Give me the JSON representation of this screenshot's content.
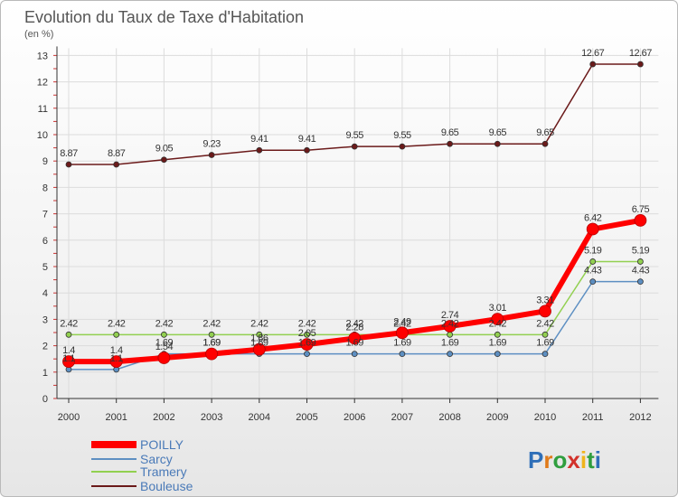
{
  "chart_data": {
    "type": "line",
    "title": "Evolution du Taux de Taxe d'Habitation",
    "subtitle": "(en %)",
    "categories": [
      "2000",
      "2001",
      "2002",
      "2003",
      "2004",
      "2005",
      "2006",
      "2007",
      "2008",
      "2009",
      "2010",
      "2011",
      "2012"
    ],
    "ylim": [
      0,
      13
    ],
    "yticks": [
      "0",
      "1",
      "2",
      "3",
      "4",
      "5",
      "6",
      "7",
      "8",
      "9",
      "10",
      "11",
      "12",
      "13"
    ],
    "grid": true,
    "legend_position": "bottom-left",
    "series": [
      {
        "name": "POILLY",
        "color": "#ff0000",
        "values": [
          1.4,
          1.4,
          1.54,
          1.69,
          1.86,
          2.05,
          2.28,
          2.49,
          2.74,
          3.01,
          3.31,
          6.42,
          6.75
        ]
      },
      {
        "name": "Sarcy",
        "color": "#5d8fc2",
        "values": [
          1.1,
          1.1,
          1.69,
          1.69,
          1.69,
          1.69,
          1.69,
          1.69,
          1.69,
          1.69,
          1.69,
          4.43,
          4.43
        ]
      },
      {
        "name": "Tramery",
        "color": "#92d050",
        "values": [
          2.42,
          2.42,
          2.42,
          2.42,
          2.42,
          2.42,
          2.42,
          2.42,
          2.42,
          2.42,
          2.42,
          5.19,
          5.19
        ]
      },
      {
        "name": "Bouleuse",
        "color": "#6b1a1a",
        "values": [
          8.87,
          8.87,
          9.05,
          9.23,
          9.41,
          9.41,
          9.55,
          9.55,
          9.65,
          9.65,
          9.65,
          12.67,
          12.67
        ]
      }
    ]
  },
  "logo": {
    "text": "Proxiti"
  }
}
